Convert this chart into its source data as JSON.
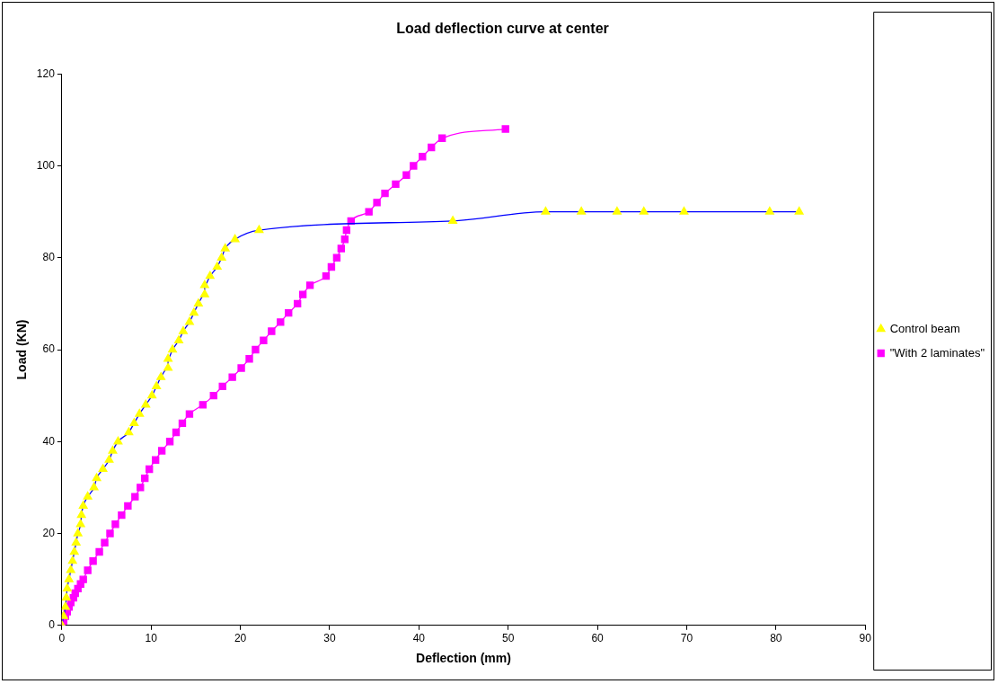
{
  "chart_data": {
    "type": "line",
    "title": "Load deflection curve at center",
    "xlabel": "Deflection (mm)",
    "ylabel": "Load (KN)",
    "xlim": [
      0,
      90
    ],
    "xticks": [
      0,
      10,
      20,
      30,
      40,
      50,
      60,
      70,
      80,
      90
    ],
    "ylim": [
      0,
      120
    ],
    "yticks": [
      0,
      20,
      40,
      60,
      80,
      100,
      120
    ],
    "grid": false,
    "legend": "right",
    "series": [
      {
        "name": "Control beam",
        "color": "#0000ff",
        "marker": "triangle",
        "colors": [
          "#ffff00",
          "#ffff00",
          "#ffff00",
          "#ffff00",
          "#ffff00",
          "#ffff00",
          "#ffff00",
          "#ffff00",
          "#ffff00",
          "#ffff00",
          "#ffff00",
          "#ffff00",
          "#ffff00",
          "#ffff00",
          "#ffff00",
          "#ffff00",
          "#ffff00",
          "#ffff00",
          "#ffff00",
          "#ffff00",
          "#ffff00",
          "#ffff00",
          "#ffff00",
          "#ffff00",
          "#ffff00",
          "#ffff00",
          "#ffff00",
          "#ffff00",
          "#ffff00",
          "#ffff00",
          "#ffff00",
          "#ffff00",
          "#ffff00",
          "#ffff00",
          "#ffff00",
          "#ffff00",
          "#ffff00",
          "#ffff00",
          "#ffff00",
          "#ffff00",
          "#ffff00",
          "#ffff00",
          "#ffff00",
          "#ffff00",
          "#ffff00",
          "#ffff00",
          "#ffff00",
          "#ffff00",
          "#ffff00",
          "#ffff00",
          "#ffff00",
          "#ffff00"
        ],
        "x": [
          0,
          0.2,
          0.4,
          0.5,
          0.6,
          0.8,
          1.0,
          1.2,
          1.4,
          1.6,
          1.8,
          2.1,
          2.2,
          2.4,
          2.9,
          3.6,
          3.9,
          4.6,
          5.3,
          5.7,
          6.3,
          7.5,
          8.1,
          8.7,
          9.4,
          10.1,
          10.6,
          11.1,
          11.9,
          11.9,
          12.4,
          13.1,
          13.6,
          14.3,
          14.8,
          15.3,
          16.0,
          16.0,
          16.6,
          17.4,
          17.9,
          18.3,
          19.4,
          22.1,
          43.8,
          54.2,
          58.2,
          62.2,
          65.2,
          69.7,
          79.3,
          82.6
        ],
        "values": [
          0,
          2,
          4,
          6,
          8,
          10,
          12,
          14,
          16,
          18,
          20,
          22,
          24,
          26,
          28,
          30,
          32,
          34,
          36,
          38,
          40,
          42,
          44,
          46,
          48,
          50,
          52,
          54,
          56,
          58,
          60,
          62,
          64,
          66,
          68,
          70,
          72,
          74,
          76,
          78,
          80,
          82,
          84,
          86,
          88,
          90,
          90,
          90,
          90,
          90,
          90,
          90
        ]
      },
      {
        "name": "\"With 2 laminates\"",
        "color": "#ff00ff",
        "marker": "square",
        "x": [
          0,
          0.2,
          0.4,
          0.6,
          0.8,
          1.0,
          1.3,
          1.5,
          1.8,
          2.1,
          2.4,
          2.9,
          3.5,
          4.2,
          4.8,
          5.4,
          6.0,
          6.7,
          7.4,
          8.2,
          8.8,
          9.3,
          9.8,
          10.5,
          11.2,
          12.1,
          12.8,
          13.5,
          14.3,
          15.8,
          17.0,
          18.0,
          19.1,
          20.1,
          21.0,
          21.7,
          22.6,
          23.5,
          24.5,
          25.4,
          26.4,
          27.0,
          27.8,
          29.6,
          30.2,
          30.8,
          31.3,
          31.7,
          31.9,
          32.4,
          34.4,
          35.3,
          36.2,
          37.4,
          38.6,
          39.4,
          40.4,
          41.4,
          42.6,
          49.7
        ],
        "values": [
          0,
          1,
          2,
          3,
          4,
          5,
          6,
          7,
          8,
          9,
          10,
          12,
          14,
          16,
          18,
          20,
          22,
          24,
          26,
          28,
          30,
          32,
          34,
          36,
          38,
          40,
          42,
          44,
          46,
          48,
          50,
          52,
          54,
          56,
          58,
          60,
          62,
          64,
          66,
          68,
          70,
          72,
          74,
          76,
          78,
          80,
          82,
          84,
          86,
          88,
          90,
          92,
          94,
          96,
          98,
          100,
          102,
          104,
          106,
          108
        ]
      }
    ]
  }
}
